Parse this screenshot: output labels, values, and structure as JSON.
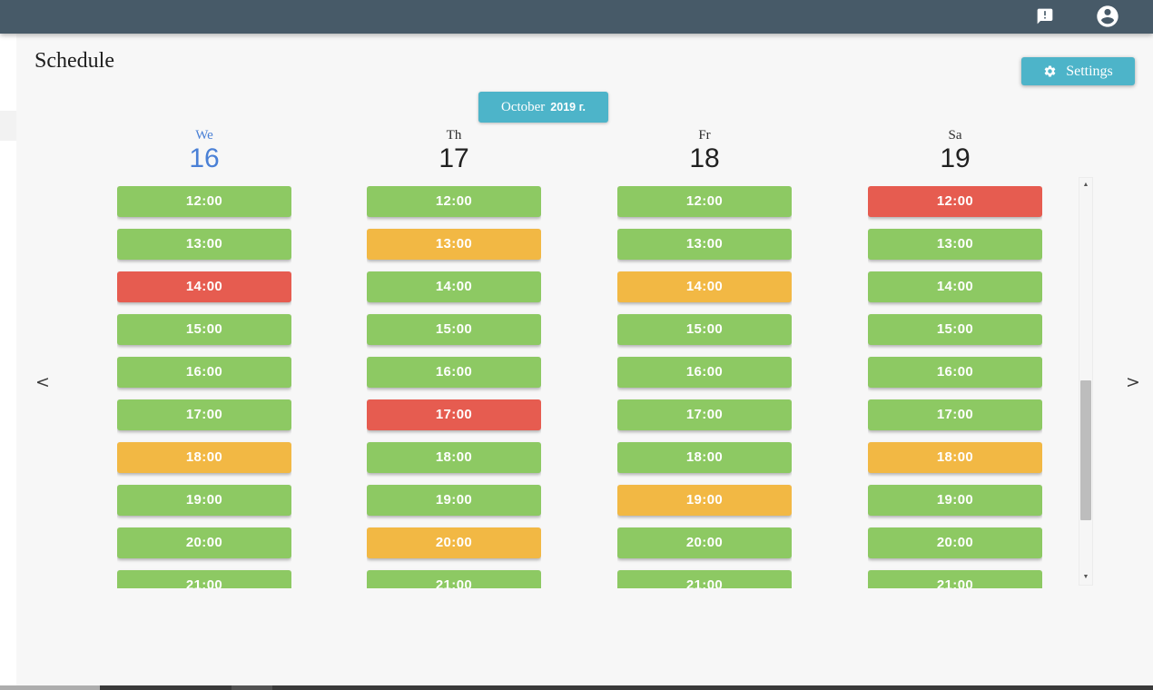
{
  "topbar": {
    "announcement_icon": "announcement",
    "account_icon": "account-circle"
  },
  "header": {
    "title": "Schedule",
    "settings_label": "Settings"
  },
  "calendar": {
    "month_label": "October",
    "year_label": "2019 г.",
    "nav_prev": "<",
    "nav_next": ">",
    "times": [
      "12:00",
      "13:00",
      "14:00",
      "15:00",
      "16:00",
      "17:00",
      "18:00",
      "19:00",
      "20:00",
      "21:00"
    ],
    "days": [
      {
        "abbr": "We",
        "date": "16",
        "active": true,
        "statuses": [
          "green",
          "green",
          "red",
          "green",
          "green",
          "green",
          "yellow",
          "green",
          "green",
          "green"
        ]
      },
      {
        "abbr": "Th",
        "date": "17",
        "active": false,
        "statuses": [
          "green",
          "yellow",
          "green",
          "green",
          "green",
          "red",
          "green",
          "green",
          "yellow",
          "green"
        ]
      },
      {
        "abbr": "Fr",
        "date": "18",
        "active": false,
        "statuses": [
          "green",
          "green",
          "yellow",
          "green",
          "green",
          "green",
          "green",
          "yellow",
          "green",
          "green"
        ]
      },
      {
        "abbr": "Sa",
        "date": "19",
        "active": false,
        "statuses": [
          "red",
          "green",
          "green",
          "green",
          "green",
          "green",
          "yellow",
          "green",
          "green",
          "green"
        ]
      }
    ]
  },
  "colors": {
    "green": "#8dc963",
    "yellow": "#f2b844",
    "red": "#e65c50",
    "teal": "#4db4c9",
    "active_day_blue": "#4a80d6",
    "topbar_bg": "#475a68"
  }
}
